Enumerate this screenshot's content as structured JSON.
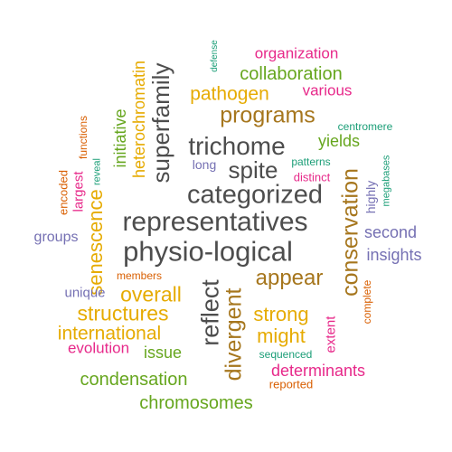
{
  "colors": {
    "gray": "#4d4d4d",
    "brown": "#a6761d",
    "orange": "#e6ab02",
    "green": "#66a61e",
    "magenta": "#e7298a",
    "teal": "#1b9e77",
    "rust": "#d95f02",
    "purple": "#7570b3"
  },
  "words": [
    {
      "text": "physio-logical",
      "color": "gray"
    },
    {
      "text": "representatives",
      "color": "gray"
    },
    {
      "text": "categorized",
      "color": "gray"
    },
    {
      "text": "trichome",
      "color": "gray"
    },
    {
      "text": "spite",
      "color": "gray"
    },
    {
      "text": "superfamily",
      "color": "gray"
    },
    {
      "text": "reflect",
      "color": "gray"
    },
    {
      "text": "divergent",
      "color": "brown"
    },
    {
      "text": "conservation",
      "color": "brown"
    },
    {
      "text": "programs",
      "color": "brown"
    },
    {
      "text": "appear",
      "color": "brown"
    },
    {
      "text": "senescence",
      "color": "orange"
    },
    {
      "text": "overall",
      "color": "orange"
    },
    {
      "text": "structures",
      "color": "orange"
    },
    {
      "text": "pathogen",
      "color": "orange"
    },
    {
      "text": "strong",
      "color": "orange"
    },
    {
      "text": "might",
      "color": "orange"
    },
    {
      "text": "international",
      "color": "orange"
    },
    {
      "text": "heterochromatin",
      "color": "orange"
    },
    {
      "text": "collaboration",
      "color": "green"
    },
    {
      "text": "yields",
      "color": "green"
    },
    {
      "text": "initiative",
      "color": "green"
    },
    {
      "text": "condensation",
      "color": "green"
    },
    {
      "text": "chromosomes",
      "color": "green"
    },
    {
      "text": "issue",
      "color": "green"
    },
    {
      "text": "organization",
      "color": "magenta"
    },
    {
      "text": "various",
      "color": "magenta"
    },
    {
      "text": "determinants",
      "color": "magenta"
    },
    {
      "text": "evolution",
      "color": "magenta"
    },
    {
      "text": "extent",
      "color": "magenta"
    },
    {
      "text": "largest",
      "color": "magenta"
    },
    {
      "text": "distinct",
      "color": "magenta"
    },
    {
      "text": "defense",
      "color": "teal"
    },
    {
      "text": "centromere",
      "color": "teal"
    },
    {
      "text": "patterns",
      "color": "teal"
    },
    {
      "text": "megabases",
      "color": "teal"
    },
    {
      "text": "sequenced",
      "color": "teal"
    },
    {
      "text": "reveal",
      "color": "teal"
    },
    {
      "text": "highly",
      "color": "purple"
    },
    {
      "text": "second",
      "color": "purple"
    },
    {
      "text": "insights",
      "color": "purple"
    },
    {
      "text": "groups",
      "color": "purple"
    },
    {
      "text": "unique",
      "color": "purple"
    },
    {
      "text": "long",
      "color": "purple"
    },
    {
      "text": "functions",
      "color": "rust"
    },
    {
      "text": "encoded",
      "color": "rust"
    },
    {
      "text": "members",
      "color": "rust"
    },
    {
      "text": "complete",
      "color": "rust"
    },
    {
      "text": "reported",
      "color": "rust"
    }
  ]
}
